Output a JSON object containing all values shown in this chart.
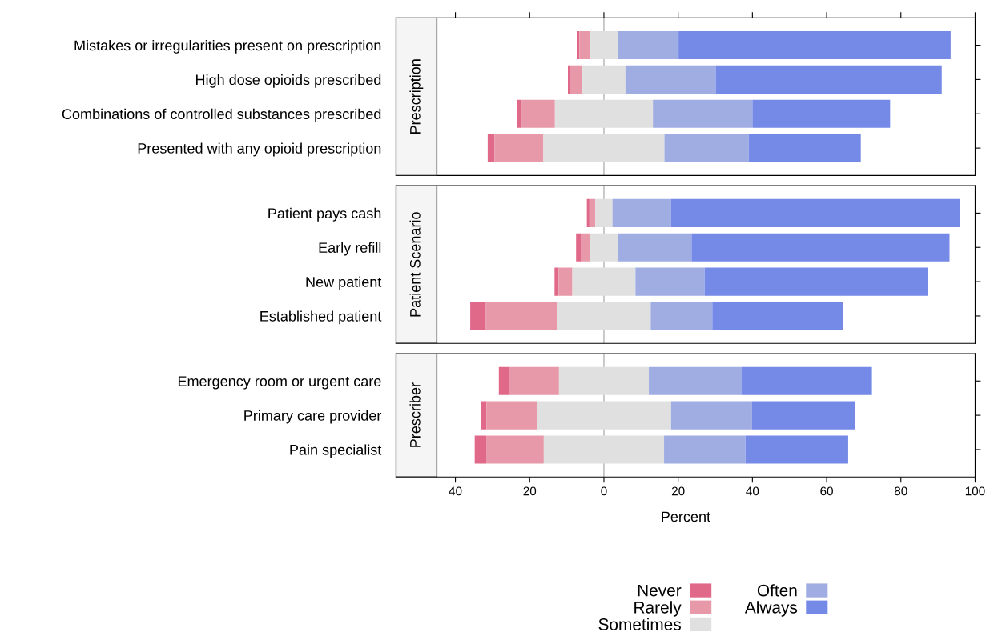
{
  "chart_data": [
    {
      "type": "bar",
      "orientation": "horizontal",
      "title": "Prescription",
      "tick_labels": "y",
      "categories": [
        "Mistakes or irregularities present on prescription",
        "High dose opioids prescribed",
        "Combinations of controlled substances prescribed",
        "Presented with any opioid prescription"
      ],
      "xlim": [
        -56,
        100
      ],
      "xticks": [
        {
          "value": -40,
          "label": null
        },
        {
          "value": -20,
          "label": null
        },
        {
          "value": 0,
          "label": null
        },
        {
          "value": 20,
          "label": null
        },
        {
          "value": 40,
          "label": null
        },
        {
          "value": 60,
          "label": null
        },
        {
          "value": 80,
          "label": null
        },
        {
          "value": 100,
          "label": null
        }
      ],
      "ref_lines": [
        {
          "axis": "x",
          "value": 0,
          "color": "#a0a0a0"
        }
      ],
      "series": [
        {
          "color": "#e0698a",
          "base": [
            -7.2,
            -9.7,
            -23.4,
            -31.3
          ],
          "values": [
            0.6,
            0.8,
            1.2,
            1.8
          ]
        },
        {
          "color": "#e899a9",
          "base": [
            -6.6,
            -8.9,
            -22.2,
            -29.5
          ],
          "values": [
            2.8,
            3.1,
            9.0,
            13.2
          ]
        },
        {
          "color": "#e0e0e0",
          "base": [
            -3.8,
            -5.8,
            -13.2,
            -16.3
          ],
          "values": [
            7.6,
            11.6,
            26.4,
            32.6
          ]
        },
        {
          "color": "#a0ade3",
          "base": [
            3.8,
            5.8,
            13.2,
            16.3
          ],
          "values": [
            16.3,
            24.3,
            26.8,
            22.7
          ]
        },
        {
          "color": "#7589e6",
          "base": [
            20.1,
            30.1,
            40.0,
            39.0
          ],
          "values": [
            73.3,
            60.9,
            37.1,
            30.2
          ]
        }
      ]
    },
    {
      "type": "bar",
      "orientation": "horizontal",
      "title": "Patient Scenario",
      "tick_labels": "y",
      "categories": [
        "Patient pays cash",
        "Early refill",
        "New patient",
        "Established patient"
      ],
      "xlim": [
        -56,
        100
      ],
      "ref_lines": [
        {
          "axis": "x",
          "value": 0,
          "color": "#a0a0a0"
        }
      ],
      "series": [
        {
          "color": "#e0698a",
          "base": [
            -4.6,
            -7.5,
            -13.3,
            -36.0
          ],
          "values": [
            0.7,
            1.4,
            1.1,
            4.1
          ]
        },
        {
          "color": "#e899a9",
          "base": [
            -3.9,
            -6.1,
            -12.2,
            -31.9
          ],
          "values": [
            1.6,
            2.4,
            3.7,
            19.3
          ]
        },
        {
          "color": "#e0e0e0",
          "base": [
            -2.3,
            -3.7,
            -8.5,
            -12.6
          ],
          "values": [
            4.6,
            7.4,
            17.0,
            25.2
          ]
        },
        {
          "color": "#a0ade3",
          "base": [
            2.3,
            3.7,
            8.5,
            12.6
          ],
          "values": [
            15.8,
            19.9,
            18.6,
            16.6
          ]
        },
        {
          "color": "#7589e6",
          "base": [
            18.1,
            23.6,
            27.1,
            29.2
          ],
          "values": [
            77.9,
            69.5,
            60.2,
            35.3
          ]
        }
      ]
    },
    {
      "type": "bar",
      "orientation": "horizontal",
      "title": "Prescriber",
      "xlabel": "Percent",
      "legend": "bottom",
      "categories": [
        "Emergency room or urgent care",
        "Primary care provider",
        "Pain specialist"
      ],
      "xlim": [
        -56,
        100
      ],
      "xticks": [
        {
          "value": -40,
          "label": "40"
        },
        {
          "value": -20,
          "label": "20"
        },
        0,
        20,
        40,
        60,
        80,
        100
      ],
      "ref_lines": [
        {
          "axis": "x",
          "value": 0,
          "color": "#a0a0a0"
        }
      ],
      "series": [
        {
          "name": "Never",
          "color": "#e0698a",
          "base": [
            -28.3,
            -33.0,
            -34.8
          ],
          "values": [
            3.0,
            1.4,
            3.1
          ]
        },
        {
          "name": "Rarely",
          "color": "#e899a9",
          "base": [
            -25.3,
            -31.6,
            -31.7
          ],
          "values": [
            13.2,
            13.5,
            15.5
          ]
        },
        {
          "name": "Sometimes",
          "color": "#e0e0e0",
          "base": [
            -12.1,
            -18.1,
            -16.2
          ],
          "values": [
            24.2,
            36.2,
            32.4
          ]
        },
        {
          "name": "Often",
          "color": "#a0ade3",
          "base": [
            12.1,
            18.1,
            16.2
          ],
          "values": [
            24.9,
            21.8,
            21.9
          ]
        },
        {
          "name": "Always",
          "color": "#7589e6",
          "base": [
            37.0,
            39.9,
            38.1
          ],
          "values": [
            35.2,
            27.7,
            27.7
          ]
        }
      ]
    }
  ]
}
